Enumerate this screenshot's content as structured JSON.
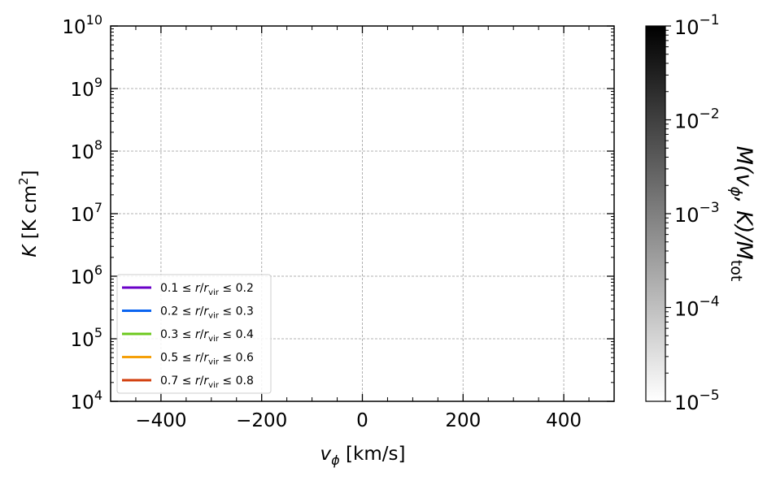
{
  "chart_data": {
    "type": "heatmap",
    "xlabel_sym": "v",
    "xlabel_sub": "ϕ",
    "xlabel_unit": " [km/s]",
    "ylabel_sym": "K",
    "ylabel_unit": " [K cm",
    "ylabel_sup": "2",
    "ylabel_close": "]",
    "xlim": [
      -500,
      500
    ],
    "ylim_log10": [
      4,
      10
    ],
    "y_scale": "log",
    "x_ticks": [
      {
        "value": -400,
        "label": "−400"
      },
      {
        "value": -200,
        "label": "−200"
      },
      {
        "value": 0,
        "label": "0"
      },
      {
        "value": 200,
        "label": "200"
      },
      {
        "value": 400,
        "label": "400"
      }
    ],
    "y_ticks": [
      {
        "exp": 4,
        "base": "10",
        "sup": "4"
      },
      {
        "exp": 5,
        "base": "10",
        "sup": "5"
      },
      {
        "exp": 6,
        "base": "10",
        "sup": "6"
      },
      {
        "exp": 7,
        "base": "10",
        "sup": "7"
      },
      {
        "exp": 8,
        "base": "10",
        "sup": "8"
      },
      {
        "exp": 9,
        "base": "10",
        "sup": "9"
      },
      {
        "exp": 10,
        "base": "10",
        "sup": "10"
      }
    ],
    "grid": true,
    "legend_position": "lower-left",
    "legend": [
      {
        "lo": "0.1",
        "hi": "0.2",
        "color": "#6a00c8"
      },
      {
        "lo": "0.2",
        "hi": "0.3",
        "color": "#0a64f0"
      },
      {
        "lo": "0.3",
        "hi": "0.4",
        "color": "#6cc81e"
      },
      {
        "lo": "0.5",
        "hi": "0.6",
        "color": "#f5a00a"
      },
      {
        "lo": "0.7",
        "hi": "0.8",
        "color": "#d23c0a"
      }
    ],
    "legend_text": {
      "le": " ≤ ",
      "r": "r",
      "slash": "/",
      "rvir": "r",
      "vir": "vir"
    },
    "colorbar": {
      "scale": "log",
      "range_log10": [
        -5,
        -1
      ],
      "colormap": "Greys",
      "ticks": [
        {
          "exp": -5,
          "base": "10",
          "sup": "−5"
        },
        {
          "exp": -4,
          "base": "10",
          "sup": "−4"
        },
        {
          "exp": -3,
          "base": "10",
          "sup": "−3"
        },
        {
          "exp": -2,
          "base": "10",
          "sup": "−2"
        },
        {
          "exp": -1,
          "base": "10",
          "sup": "−1"
        }
      ],
      "label_a": "M(v",
      "label_sub": "ϕ",
      "label_b": ", K)/M",
      "label_sub2": "tot"
    }
  }
}
